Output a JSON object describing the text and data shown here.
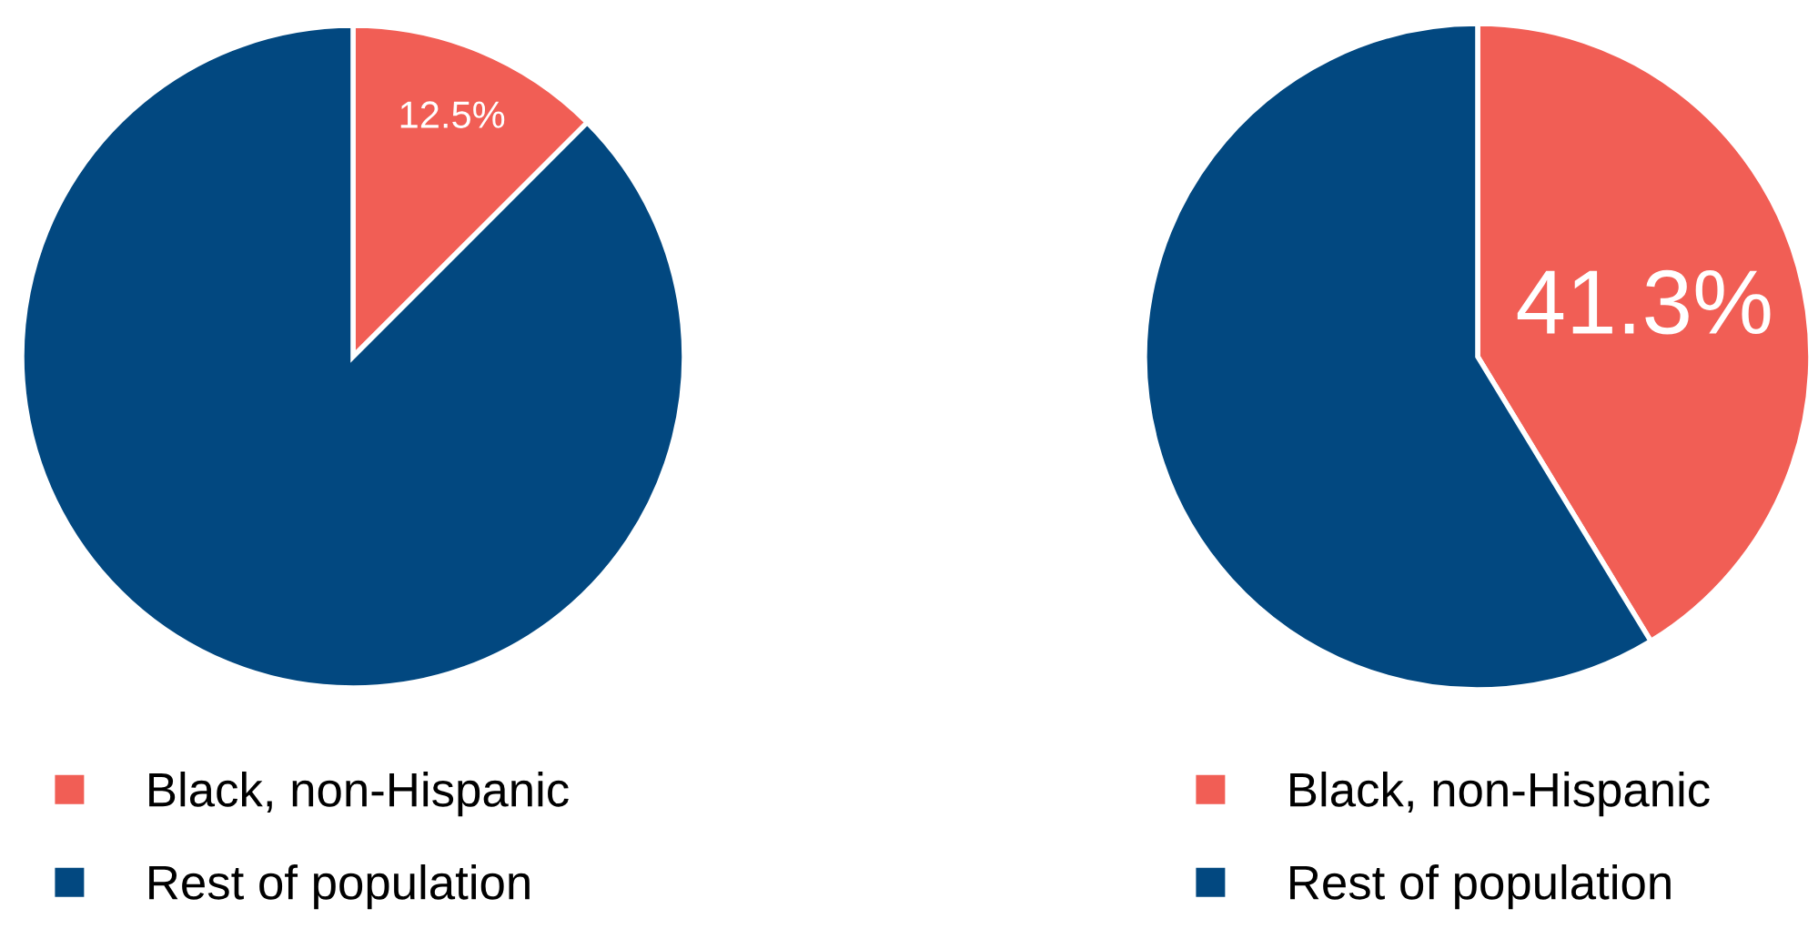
{
  "chart_data": [
    {
      "type": "pie",
      "categories": [
        "Black, non-Hispanic",
        "Rest of population"
      ],
      "values": [
        12.5,
        87.5
      ],
      "colors": [
        "#f15e55",
        "#024880"
      ],
      "value_labels": [
        "12.5%",
        null
      ],
      "legend": "bottom"
    },
    {
      "type": "pie",
      "categories": [
        "Black, non-Hispanic",
        "Rest of population"
      ],
      "values": [
        41.3,
        58.7
      ],
      "colors": [
        "#f15e55",
        "#024880"
      ],
      "value_labels": [
        "41.3%",
        null
      ],
      "legend": "bottom"
    }
  ]
}
